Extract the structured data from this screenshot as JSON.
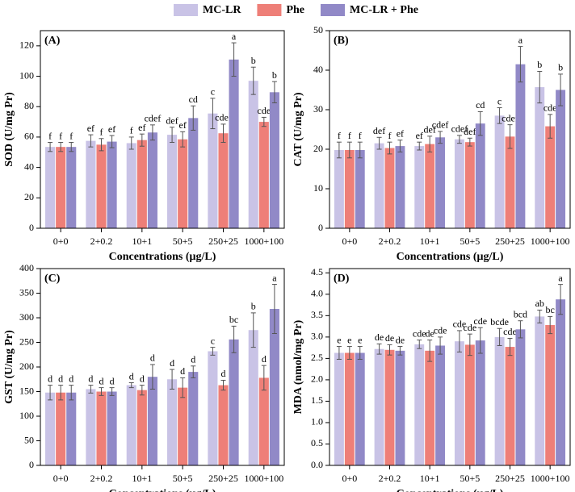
{
  "legend": [
    {
      "name": "MC-LR",
      "color": "#c9c3e6"
    },
    {
      "name": "Phe",
      "color": "#ee7f78"
    },
    {
      "name": "MC-LR + Phe",
      "color": "#9189c7"
    }
  ],
  "chart_data": [
    {
      "type": "bar",
      "panel": "(A)",
      "y_label": "SOD (U/mg Pr)",
      "x_label": "Concentrations (μg/L)",
      "categories": [
        "0+0",
        "2+0.2",
        "10+1",
        "50+5",
        "250+25",
        "1000+100"
      ],
      "ylim": [
        0,
        130
      ],
      "yticks": [
        0,
        20,
        40,
        60,
        80,
        100,
        120
      ],
      "series": [
        {
          "values": [
            53.5,
            57.5,
            56,
            61.5,
            75.5,
            97
          ],
          "errors": [
            3,
            4,
            4,
            5,
            10,
            9
          ],
          "letters": [
            "f",
            "ef",
            "f",
            "def",
            "c",
            "b"
          ]
        },
        {
          "values": [
            53.5,
            55,
            58,
            58.5,
            62.5,
            70
          ],
          "errors": [
            3,
            4,
            4,
            5,
            6,
            3
          ],
          "letters": [
            "f",
            "f",
            "ef",
            "ef",
            "cdef",
            "cde"
          ]
        },
        {
          "values": [
            53.5,
            57,
            63,
            72.5,
            111,
            89.5
          ],
          "errors": [
            3,
            4,
            5,
            8,
            11,
            7
          ],
          "letters": [
            "f",
            "ef",
            "cdef",
            "cd",
            "a",
            "b"
          ]
        }
      ]
    },
    {
      "type": "bar",
      "panel": "(B)",
      "y_label": "CAT (U/mg Pr)",
      "x_label": "Concentrations (μg/L)",
      "categories": [
        "0+0",
        "2+0.2",
        "10+1",
        "50+5",
        "250+25",
        "1000+100"
      ],
      "ylim": [
        0,
        50
      ],
      "yticks": [
        0,
        10,
        20,
        30,
        40,
        50
      ],
      "series": [
        {
          "values": [
            19.8,
            21.5,
            20.8,
            22.5,
            28.5,
            35.7
          ],
          "errors": [
            2,
            1.5,
            1,
            1,
            2,
            4
          ],
          "letters": [
            "f",
            "def",
            "ef",
            "cdef",
            "c",
            "b"
          ]
        },
        {
          "values": [
            19.8,
            20.3,
            21.3,
            21.8,
            23.2,
            25.8
          ],
          "errors": [
            2,
            1.5,
            2,
            1,
            3,
            3
          ],
          "letters": [
            "f",
            "f",
            "def",
            "def",
            "cdef",
            "cde"
          ]
        },
        {
          "values": [
            19.8,
            20.8,
            23,
            26.5,
            41.5,
            35
          ],
          "errors": [
            2,
            1.5,
            1.5,
            3,
            4.5,
            4
          ],
          "letters": [
            "f",
            "ef",
            "cdef",
            "cd",
            "a",
            "b"
          ]
        }
      ]
    },
    {
      "type": "bar",
      "panel": "(C)",
      "y_label": "GST (U/mg Pr)",
      "x_label": "Concentrations (μg/L)",
      "categories": [
        "0+0",
        "2+0.2",
        "10+1",
        "50+5",
        "250+25",
        "1000+100"
      ],
      "ylim": [
        0,
        400
      ],
      "yticks": [
        0,
        50,
        100,
        150,
        200,
        250,
        300,
        350,
        400
      ],
      "series": [
        {
          "values": [
            148,
            155,
            163,
            175,
            232,
            275
          ],
          "errors": [
            15,
            8,
            5,
            20,
            8,
            35
          ],
          "letters": [
            "d",
            "d",
            "d",
            "d",
            "c",
            "b"
          ]
        },
        {
          "values": [
            148,
            150,
            153,
            158,
            163,
            178
          ],
          "errors": [
            15,
            8,
            10,
            20,
            10,
            25
          ],
          "letters": [
            "d",
            "d",
            "d",
            "d",
            "d",
            "d"
          ]
        },
        {
          "values": [
            148,
            150,
            180,
            190,
            256,
            318
          ],
          "errors": [
            15,
            8,
            25,
            12,
            27,
            50
          ],
          "letters": [
            "d",
            "d",
            "d",
            "d",
            "bc",
            "a"
          ]
        }
      ]
    },
    {
      "type": "bar",
      "panel": "(D)",
      "y_label": "MDA (nmol/mg Pr)",
      "x_label": "Concentrations (μg/L)",
      "categories": [
        "0+0",
        "2+0.2",
        "10+1",
        "50+5",
        "250+25",
        "1000+100"
      ],
      "ylim": [
        0,
        4.6
      ],
      "yticks": [
        {
          "value": 0,
          "label": "0.0"
        },
        0.5,
        {
          "value": 1,
          "label": "1.0"
        },
        1.5,
        {
          "value": 2,
          "label": "2.0"
        },
        2.5,
        {
          "value": 3,
          "label": "3.0"
        },
        3.5,
        {
          "value": 4,
          "label": "4.0"
        },
        4.5
      ],
      "series": [
        {
          "values": [
            2.63,
            2.72,
            2.83,
            2.9,
            3.0,
            3.48
          ],
          "errors": [
            0.15,
            0.12,
            0.1,
            0.25,
            0.2,
            0.15
          ],
          "letters": [
            "e",
            "de",
            "cde",
            "cde",
            "bcde",
            "ab"
          ]
        },
        {
          "values": [
            2.63,
            2.7,
            2.68,
            2.82,
            2.77,
            3.28
          ],
          "errors": [
            0.15,
            0.12,
            0.25,
            0.25,
            0.2,
            0.2
          ],
          "letters": [
            "e",
            "de",
            "de",
            "cde",
            "cde",
            "bc"
          ]
        },
        {
          "values": [
            2.63,
            2.68,
            2.8,
            2.92,
            3.18,
            3.88
          ],
          "errors": [
            0.15,
            0.1,
            0.2,
            0.3,
            0.2,
            0.35
          ],
          "letters": [
            "e",
            "de",
            "cde",
            "cde",
            "bcd",
            "a"
          ]
        }
      ]
    }
  ]
}
